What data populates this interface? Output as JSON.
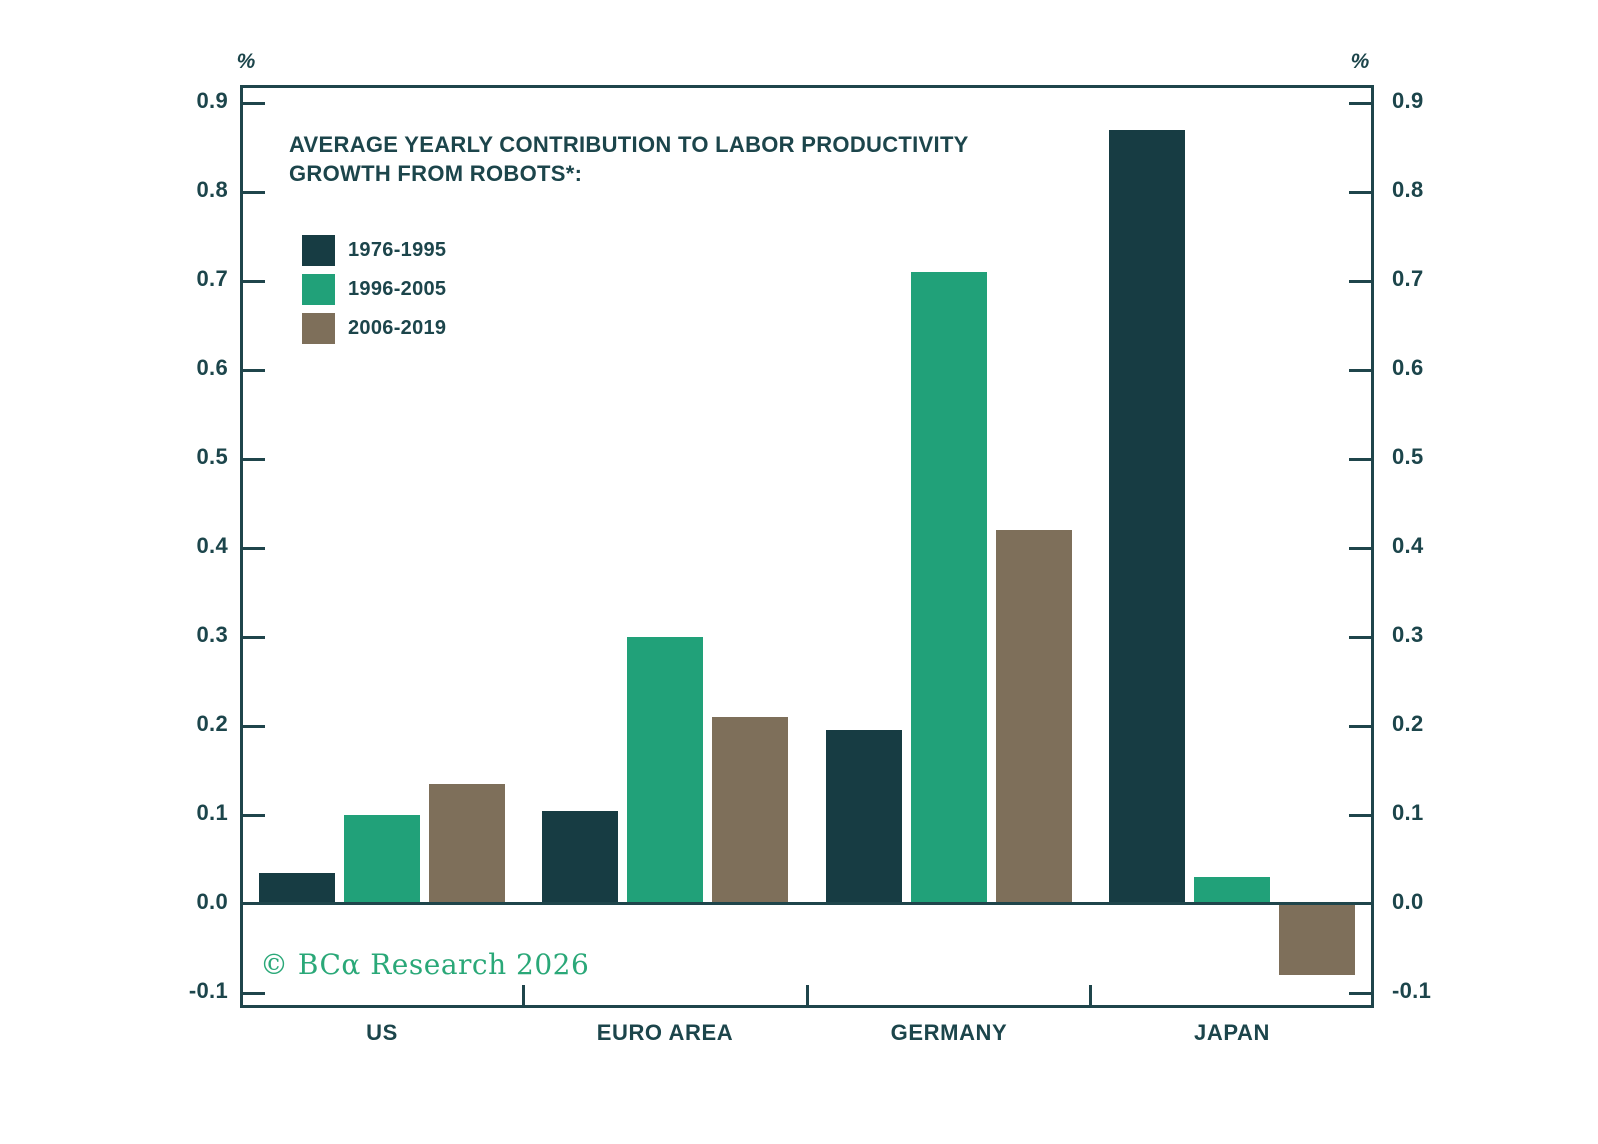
{
  "chart_data": {
    "type": "bar",
    "title": "AVERAGE YEARLY CONTRIBUTION TO LABOR PRODUCTIVITY GROWTH FROM ROBOTS*:",
    "title_line1": "AVERAGE YEARLY CONTRIBUTION TO LABOR PRODUCTIVITY",
    "title_line2": "GROWTH FROM ROBOTS*:",
    "unit_label": "%",
    "categories": [
      "US",
      "EURO AREA",
      "GERMANY",
      "JAPAN"
    ],
    "series": [
      {
        "name": "1976-1995",
        "color": "#173c43",
        "values": [
          0.035,
          0.105,
          0.195,
          0.87
        ]
      },
      {
        "name": "1996-2005",
        "color": "#21a179",
        "values": [
          0.1,
          0.3,
          0.71,
          0.03
        ]
      },
      {
        "name": "2006-2019",
        "color": "#7e6f5a",
        "values": [
          0.135,
          0.21,
          0.42,
          -0.08
        ]
      }
    ],
    "ylim": [
      -0.117,
      0.92
    ],
    "yticks": [
      0.9,
      0.8,
      0.7,
      0.6,
      0.5,
      0.4,
      0.3,
      0.2,
      0.1,
      0.0,
      -0.1
    ],
    "ytick_labels": [
      "0.9",
      "0.8",
      "0.7",
      "0.6",
      "0.5",
      "0.4",
      "0.3",
      "0.2",
      "0.1",
      "0.0",
      "-0.1"
    ],
    "grid": false,
    "legend_position": "top-left",
    "axis_sides": "both"
  },
  "footer": {
    "copyright": "© BCα Research 2026"
  },
  "colors": {
    "background": "#ffffff",
    "axis": "#1f454b",
    "text": "#1c454b",
    "copyright_green": "#2aa878",
    "series_dark_teal": "#173c43",
    "series_green": "#21a179",
    "series_brown": "#7e6f5a"
  }
}
